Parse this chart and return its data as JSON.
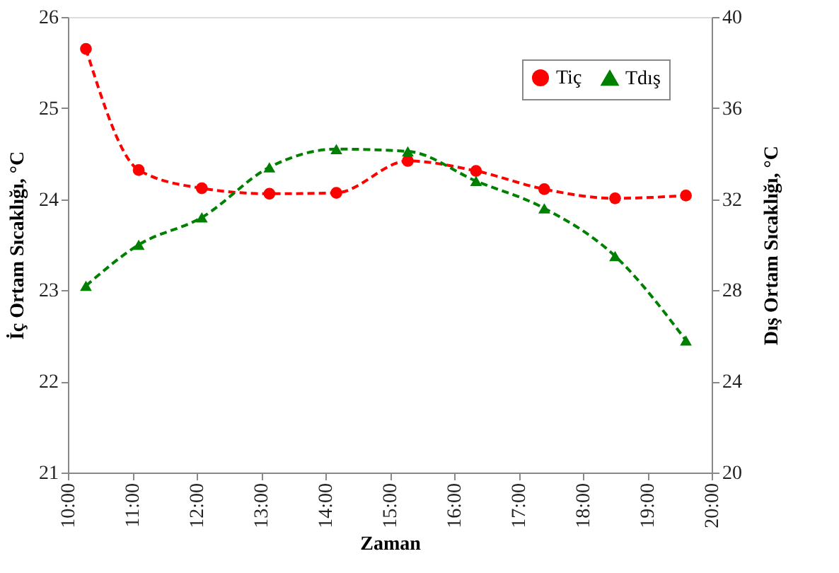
{
  "chart_data": {
    "type": "line",
    "xlabel": "Zaman",
    "ylabel": "İç Ortam Sıcaklığı, °C",
    "y2label": "Dış Ortam Sıcaklığı, °C",
    "x": [
      10.28,
      11.1,
      12.08,
      13.13,
      14.17,
      15.28,
      16.34,
      17.4,
      18.5,
      19.6
    ],
    "series": [
      {
        "name": "Tiç",
        "color": "#ff0000",
        "marker": "circle",
        "line_style": "dashed",
        "values": [
          25.65,
          24.32,
          24.12,
          24.06,
          24.07,
          24.42,
          24.31,
          24.11,
          24.01,
          24.04
        ]
      },
      {
        "name": "Tdış",
        "color": "#008000",
        "marker": "triangle",
        "line_style": "dashed",
        "axis": "y2",
        "values": [
          28.2,
          30.0,
          31.2,
          33.4,
          34.2,
          34.1,
          32.8,
          31.6,
          29.5,
          25.8
        ]
      }
    ],
    "xlim": [
      10,
      20
    ],
    "xticks": [
      {
        "value": 10,
        "label": "10:00"
      },
      {
        "value": 11,
        "label": "11:00"
      },
      {
        "value": 12,
        "label": "12:00"
      },
      {
        "value": 13,
        "label": "13:00"
      },
      {
        "value": 14,
        "label": "14:00"
      },
      {
        "value": 15,
        "label": "15:00"
      },
      {
        "value": 16,
        "label": "16:00"
      },
      {
        "value": 17,
        "label": "17:00"
      },
      {
        "value": 18,
        "label": "18:00"
      },
      {
        "value": 19,
        "label": "19:00"
      },
      {
        "value": 20,
        "label": "20:00"
      }
    ],
    "ylim": [
      21,
      26
    ],
    "yticks": [
      21,
      22,
      23,
      24,
      25,
      26
    ],
    "y2lim": [
      20,
      40
    ],
    "y2ticks": [
      20,
      24,
      28,
      32,
      36,
      40
    ],
    "grid": false,
    "legend": "top right"
  }
}
